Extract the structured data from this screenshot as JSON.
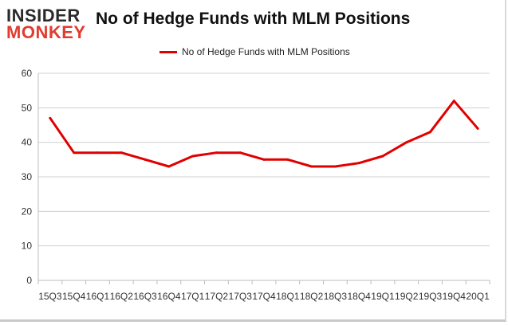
{
  "brand": {
    "line1": "INSIDER",
    "line2": "MONKEY"
  },
  "colors": {
    "series": "#e00000",
    "grid": "#d0d0d0",
    "logo_red": "#e23b2f"
  },
  "chart_data": {
    "type": "line",
    "title": "No of Hedge Funds with MLM Positions",
    "x": [
      "15Q3",
      "15Q4",
      "16Q1",
      "16Q2",
      "16Q3",
      "16Q4",
      "17Q1",
      "17Q2",
      "17Q3",
      "17Q4",
      "18Q1",
      "18Q2",
      "18Q3",
      "18Q4",
      "19Q1",
      "19Q2",
      "19Q3",
      "19Q4",
      "20Q1"
    ],
    "series": [
      {
        "name": "No of Hedge Funds with MLM Positions",
        "values": [
          47,
          37,
          37,
          37,
          35,
          33,
          36,
          37,
          37,
          35,
          35,
          33,
          33,
          34,
          36,
          40,
          43,
          52,
          44
        ]
      }
    ],
    "ylim": [
      0,
      60
    ],
    "yticks": [
      0,
      10,
      20,
      30,
      40,
      50,
      60
    ],
    "grid": true,
    "legend": "top-center"
  }
}
